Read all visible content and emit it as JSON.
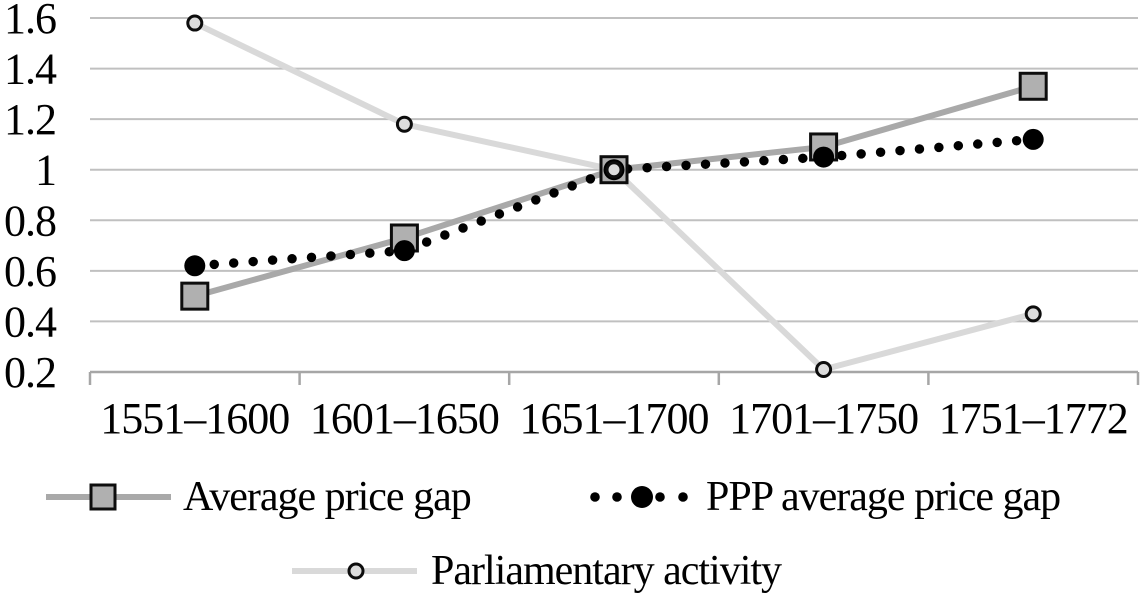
{
  "chart_data": {
    "type": "line",
    "title": "",
    "xlabel": "",
    "ylabel": "",
    "categories": [
      "1551–1600",
      "1601–1650",
      "1651–1700",
      "1701–1750",
      "1751–1772"
    ],
    "series": [
      {
        "id": "average-price-gap",
        "name": "Average price gap",
        "values": [
          0.5,
          0.73,
          1.0,
          1.09,
          1.33
        ],
        "color": "#a9a9a9",
        "line": "solid",
        "marker": "square",
        "marker_fill": "#b0b0b0",
        "marker_stroke": "#0d0d0d"
      },
      {
        "id": "ppp-average-price-gap",
        "name": "PPP average price gap",
        "values": [
          0.62,
          0.68,
          1.0,
          1.05,
          1.12
        ],
        "color": "#000000",
        "line": "dotted",
        "marker": "filled-circle",
        "marker_fill": "#000000",
        "marker_stroke": "#000000"
      },
      {
        "id": "parliamentary-activity",
        "name": "Parliamentary activity",
        "values": [
          1.58,
          1.18,
          1.0,
          0.21,
          0.43
        ],
        "color": "#d9d9d9",
        "line": "solid",
        "marker": "open-circle",
        "marker_fill": "#dcdcdc",
        "marker_stroke": "#0d0d0d"
      }
    ],
    "ylim": [
      0.2,
      1.6
    ],
    "yticks": [
      {
        "value": 0.2,
        "label": "0.2"
      },
      {
        "value": 0.4,
        "label": "0.4"
      },
      {
        "value": 0.6,
        "label": "0.6"
      },
      {
        "value": 0.8,
        "label": "0.8"
      },
      {
        "value": 1.0,
        "label": "1"
      },
      {
        "value": 1.2,
        "label": "1.2"
      },
      {
        "value": 1.4,
        "label": "1.4"
      },
      {
        "value": 1.6,
        "label": "1.6"
      }
    ],
    "grid": true,
    "legend_position": "bottom",
    "colors": {
      "grid": "#c0c0c0",
      "axis": "#a6a6a6",
      "background": "#ffffff"
    }
  }
}
